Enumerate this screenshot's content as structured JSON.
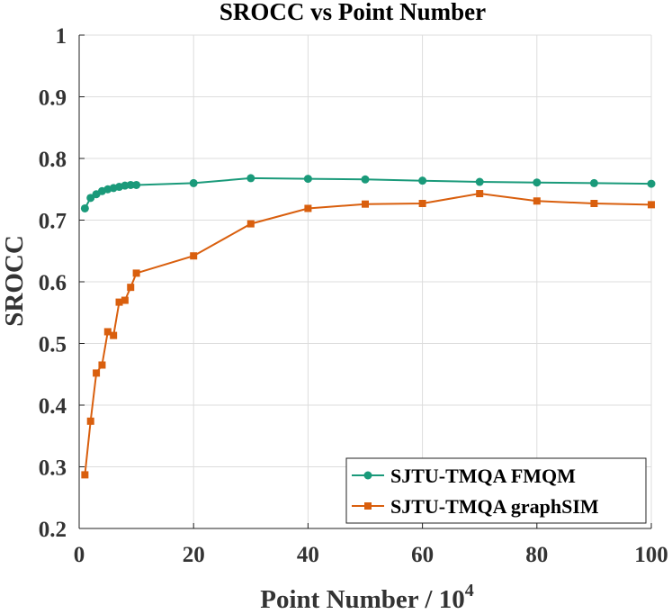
{
  "chart_data": {
    "type": "line",
    "title": "SROCC vs Point Number",
    "xlabel": "Point Number / 10",
    "xlabel_superscript": "4",
    "ylabel": "SROCC",
    "xlim": [
      0,
      100
    ],
    "ylim": [
      0.2,
      1.0
    ],
    "x_ticks": [
      0,
      20,
      40,
      60,
      80,
      100
    ],
    "y_ticks": [
      0.2,
      0.3,
      0.4,
      0.5,
      0.6,
      0.7,
      0.8,
      0.9,
      1.0
    ],
    "x_tick_labels": [
      "0",
      "20",
      "40",
      "60",
      "80",
      "100"
    ],
    "y_tick_labels": [
      "0.2",
      "0.3",
      "0.4",
      "0.5",
      "0.6",
      "0.7",
      "0.8",
      "0.9",
      "1"
    ],
    "grid": true,
    "legend_position": "bottom-right",
    "series": [
      {
        "name": "SJTU-TMQA FMQM",
        "color": "#1a9a7a",
        "marker": "circle",
        "x": [
          1,
          2,
          3,
          4,
          5,
          6,
          7,
          8,
          9,
          10,
          20,
          30,
          40,
          50,
          60,
          70,
          80,
          90,
          100
        ],
        "values": [
          0.719,
          0.736,
          0.742,
          0.747,
          0.75,
          0.752,
          0.754,
          0.756,
          0.757,
          0.757,
          0.76,
          0.768,
          0.767,
          0.766,
          0.764,
          0.762,
          0.761,
          0.76,
          0.759
        ]
      },
      {
        "name": "SJTU-TMQA graphSIM",
        "color": "#d95f0e",
        "marker": "square",
        "x": [
          1,
          2,
          3,
          4,
          5,
          6,
          7,
          8,
          9,
          10,
          20,
          30,
          40,
          50,
          60,
          70,
          80,
          90,
          100
        ],
        "values": [
          0.287,
          0.374,
          0.452,
          0.465,
          0.519,
          0.513,
          0.567,
          0.57,
          0.591,
          0.614,
          0.642,
          0.694,
          0.719,
          0.726,
          0.727,
          0.743,
          0.731,
          0.727,
          0.725
        ]
      }
    ]
  }
}
